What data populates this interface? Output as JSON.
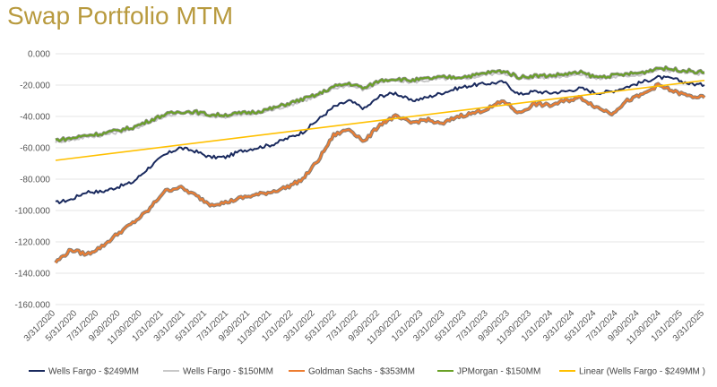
{
  "title": "Swap Portfolio MTM",
  "colors": {
    "wf249": "#1a2a5e",
    "wf150": "#c8c8c8",
    "gs353": "#ed7d31",
    "gs353_outline": "#8a7f76",
    "jpm150": "#6aa126",
    "jpm150_outline": "#8e8e8e",
    "linear": "#ffc000",
    "grid": "#e6e6e6"
  },
  "chart_data": {
    "type": "line",
    "title": "Swap Portfolio MTM",
    "ylim": [
      -160000,
      0
    ],
    "y_ticks": [
      0,
      -20000,
      -40000,
      -60000,
      -80000,
      -100000,
      -120000,
      -140000,
      -160000
    ],
    "y_tick_labels": [
      "0.000",
      "-20.000",
      "-40.000",
      "-60.000",
      "-80.000",
      "-100.000",
      "-120.000",
      "-140.000",
      "-160.000"
    ],
    "x_tick_labels": [
      "3/31/2020",
      "5/31/2020",
      "7/31/2020",
      "9/30/2020",
      "11/30/2020",
      "1/31/2021",
      "3/31/2021",
      "5/31/2021",
      "7/31/2021",
      "9/30/2021",
      "11/30/2021",
      "1/31/2022",
      "3/31/2022",
      "5/31/2022",
      "7/31/2022",
      "9/30/2022",
      "11/30/2022",
      "1/31/2023",
      "3/31/2023",
      "5/31/2023",
      "7/31/2023",
      "9/30/2023",
      "11/30/2023",
      "1/31/2024",
      "3/31/2024",
      "5/31/2024",
      "7/31/2024",
      "9/30/2024",
      "11/30/2024",
      "1/31/2025",
      "3/31/2025"
    ],
    "grid": true,
    "legend_position": "bottom",
    "series": [
      {
        "name": "Wells Fargo - $249MM",
        "color_key": "wf249",
        "values": [
          -95000,
          -93000,
          -88000,
          -88000,
          -85000,
          -82000,
          -73000,
          -65000,
          -60000,
          -62000,
          -66000,
          -66000,
          -62000,
          -60000,
          -58000,
          -54000,
          -50000,
          -42000,
          -34000,
          -30000,
          -35000,
          -27000,
          -25000,
          -30000,
          -28000,
          -25000,
          -22000,
          -20000,
          -19000,
          -18000,
          -26000,
          -24000,
          -25000,
          -24000,
          -22000,
          -25000,
          -24000,
          -21000,
          -18000,
          -15000,
          -16000,
          -19000,
          -20000
        ]
      },
      {
        "name": "Wells Fargo - $150MM",
        "color_key": "wf150",
        "values": [
          -56000,
          -55000,
          -53000,
          -52000,
          -50000,
          -48000,
          -44000,
          -40000,
          -38000,
          -38000,
          -40000,
          -40000,
          -39000,
          -38000,
          -36000,
          -33000,
          -30000,
          -27000,
          -22000,
          -20000,
          -23000,
          -18000,
          -17000,
          -18000,
          -17000,
          -16000,
          -16000,
          -15000,
          -13000,
          -12000,
          -16000,
          -15000,
          -15000,
          -14000,
          -13000,
          -16000,
          -15000,
          -14000,
          -13000,
          -10000,
          -11000,
          -12000,
          -13000
        ]
      },
      {
        "name": "Goldman Sachs - $353MM",
        "color_key": "gs353",
        "values": [
          -133000,
          -125000,
          -128000,
          -123000,
          -115000,
          -108000,
          -100000,
          -88000,
          -85000,
          -90000,
          -96000,
          -95000,
          -92000,
          -90000,
          -88000,
          -85000,
          -80000,
          -68000,
          -52000,
          -48000,
          -56000,
          -45000,
          -40000,
          -44000,
          -42000,
          -45000,
          -40000,
          -38000,
          -35000,
          -30000,
          -38000,
          -32000,
          -33000,
          -30000,
          -28000,
          -34000,
          -38000,
          -30000,
          -26000,
          -20000,
          -24000,
          -27000,
          -28000
        ]
      },
      {
        "name": "JPMorgan - $150MM",
        "color_key": "jpm150",
        "values": [
          -55000,
          -54000,
          -52000,
          -51000,
          -49000,
          -47000,
          -43000,
          -39000,
          -37000,
          -37000,
          -39000,
          -39000,
          -38000,
          -37000,
          -35000,
          -32000,
          -29000,
          -26000,
          -21000,
          -19000,
          -22000,
          -17000,
          -16000,
          -17000,
          -16000,
          -15000,
          -15000,
          -14000,
          -12000,
          -11000,
          -15000,
          -14000,
          -14000,
          -13000,
          -12000,
          -15000,
          -14000,
          -13000,
          -12000,
          -9000,
          -10000,
          -11000,
          -12000
        ]
      },
      {
        "name": "Linear (Wells Fargo - $249MM )",
        "color_key": "linear",
        "values": [
          -68000,
          -17000
        ]
      }
    ]
  }
}
